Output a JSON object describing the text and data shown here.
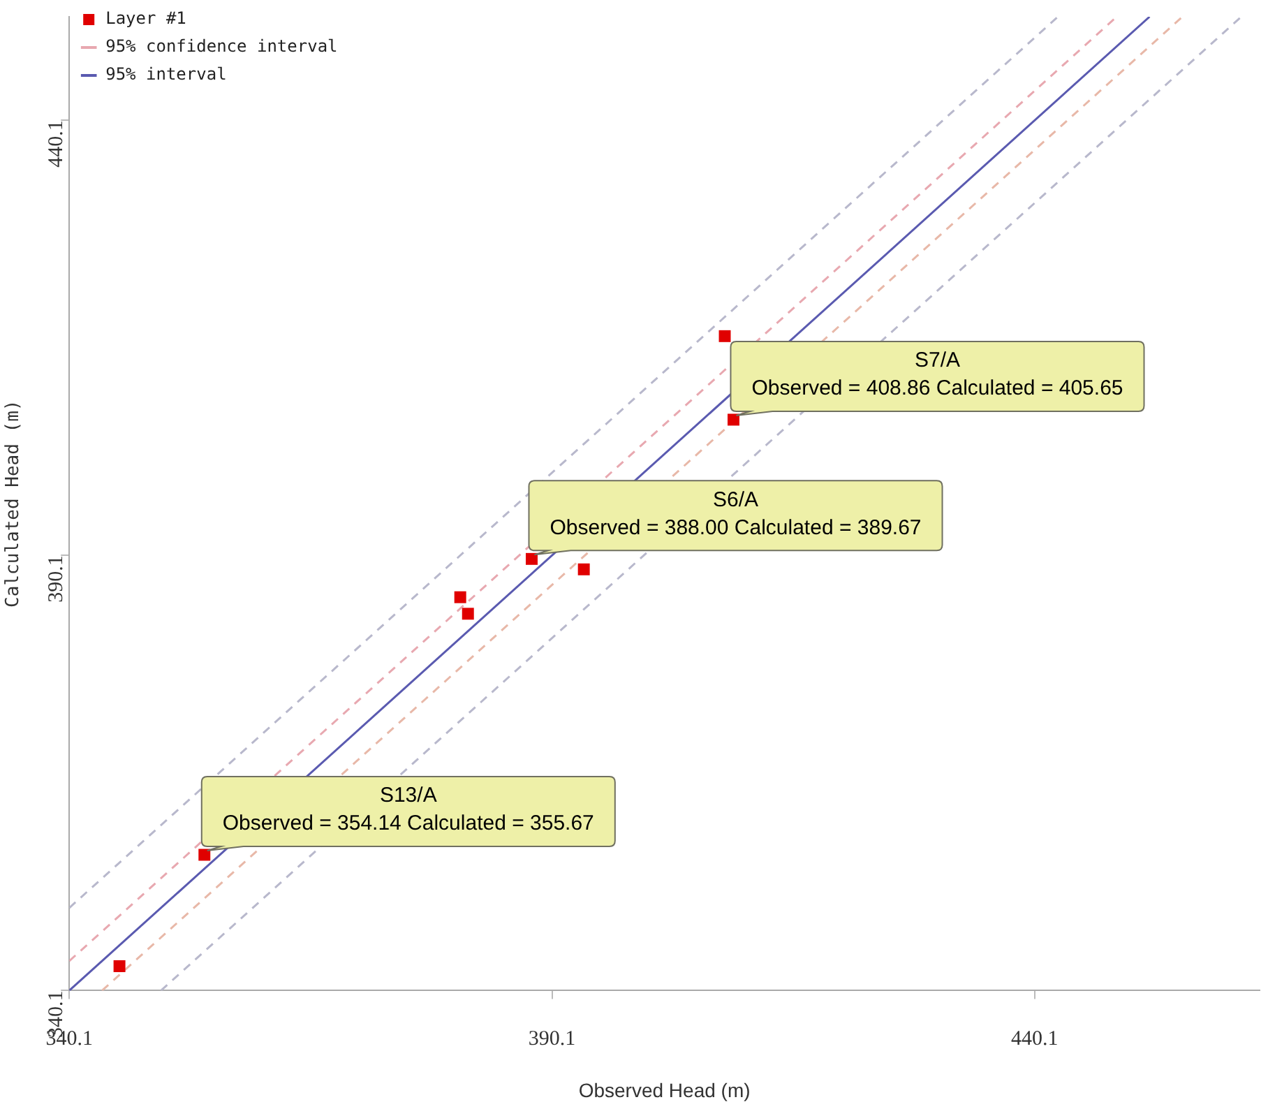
{
  "chart_data": {
    "type": "scatter",
    "xlabel": "Observed Head (m)",
    "ylabel": "Calculated Head (m)",
    "xlim": [
      340.1,
      463.4
    ],
    "ylim": [
      340.1,
      452
    ],
    "xticks": [
      340.1,
      390.1,
      440.1
    ],
    "yticks": [
      340.1,
      390.1,
      440.1
    ],
    "grid": false,
    "legend": "top left",
    "series": [
      {
        "type": "scatter",
        "name": "Layer #1",
        "color": "#e00000",
        "marker": "square",
        "x": [
          345.3,
          354.1,
          380.6,
          381.4,
          388.0,
          393.4,
          408.0,
          408.9
        ],
        "values": [
          342.9,
          355.7,
          385.3,
          383.4,
          389.7,
          388.5,
          415.3,
          405.7
        ]
      },
      {
        "type": "line",
        "name": "95% confidence interval",
        "color": "#e8a8b0",
        "line_style": "dashed",
        "marker": "none",
        "x": [
          340.1,
          448.6
        ],
        "values": [
          343.5,
          452
        ]
      },
      {
        "type": "line",
        "name": "95% interval",
        "color": "#5a5ab0",
        "line_style": "solid",
        "marker": "none",
        "x": [
          340.1,
          452
        ],
        "values": [
          340.1,
          452
        ]
      },
      {
        "type": "line",
        "color": "#e8b8a8",
        "line_style": "dashed",
        "marker": "none",
        "x": [
          343.5,
          455.4
        ],
        "values": [
          340.1,
          452
        ]
      },
      {
        "type": "line",
        "color": "#b8b8cc",
        "line_style": "dashed",
        "marker": "none",
        "x": [
          340.1,
          442.5
        ],
        "values": [
          349.6,
          452
        ]
      },
      {
        "type": "line",
        "color": "#b8b8cc",
        "line_style": "dashed",
        "marker": "none",
        "x": [
          349.6,
          461.5
        ],
        "values": [
          340.1,
          452
        ]
      }
    ],
    "annotations": [
      {
        "text": "S13/A\nObserved = 354.14 Calculated = 355.67",
        "x": 354.1,
        "y": 355.7
      },
      {
        "text": "S6/A\nObserved = 388.00 Calculated = 389.67",
        "x": 388.0,
        "y": 389.7
      },
      {
        "text": "S7/A\nObserved = 408.86 Calculated = 405.65",
        "x": 408.9,
        "y": 405.7
      }
    ]
  }
}
